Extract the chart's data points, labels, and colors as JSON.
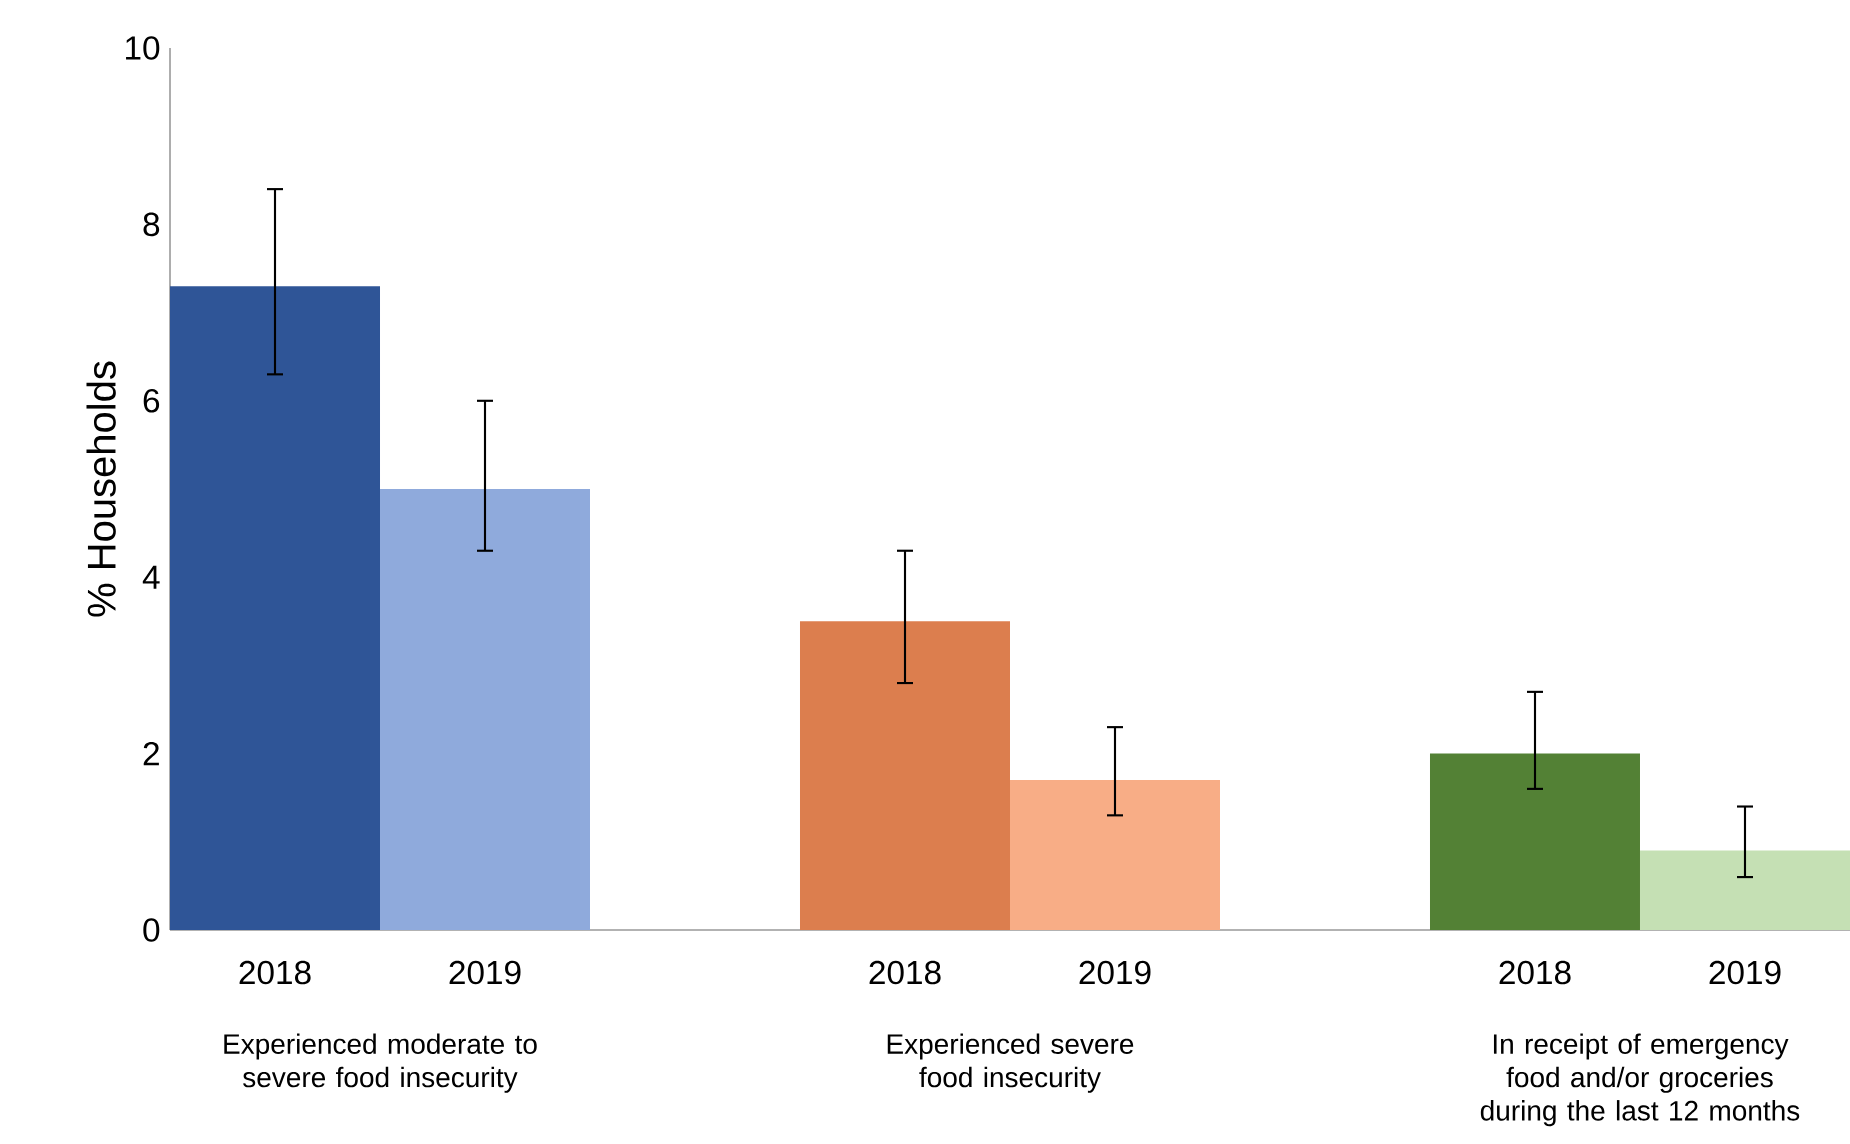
{
  "chart_data": {
    "type": "bar",
    "ylabel": "% Households",
    "categories": [
      "2018",
      "2019",
      null,
      "2018",
      "2019",
      null,
      "2018",
      "2019"
    ],
    "values": [
      7.3,
      5.0,
      null,
      3.5,
      1.7,
      null,
      2.0,
      0.9
    ],
    "colors": [
      "#2f5597",
      "#8faadc",
      "#ffffff",
      "#dc7e4e",
      "#f8ad86",
      "#ffffff",
      "#538135",
      "#c5e0b4"
    ],
    "errors": [
      [
        6.3,
        8.4
      ],
      [
        4.3,
        6.0
      ],
      null,
      [
        2.8,
        4.3
      ],
      [
        1.3,
        2.3
      ],
      null,
      [
        1.6,
        2.7
      ],
      [
        0.6,
        1.4
      ]
    ],
    "ylim": [
      0,
      10
    ],
    "yticks": [
      0,
      2,
      4,
      6,
      8,
      10
    ],
    "annotations": [
      "Experienced moderate to severe food insecurity",
      "Experienced severe food insecurity",
      "In receipt of emergency food and/or groceries during the last 12 months"
    ]
  }
}
